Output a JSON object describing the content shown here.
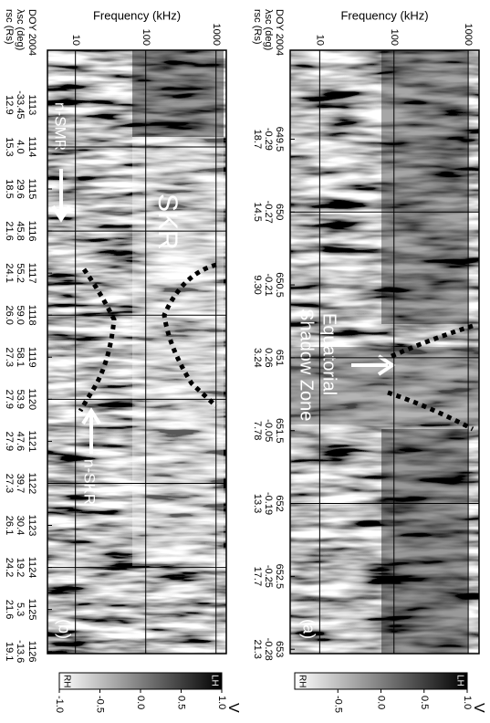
{
  "chart_data": [
    {
      "type": "spectrogram",
      "panel_label": "(a)",
      "ylabel": "Frequency (kHz)",
      "ylog": true,
      "ylim": [
        4,
        1400
      ],
      "yticks": [
        10,
        100,
        1000
      ],
      "xlim": [
        648.89,
        653.03
      ],
      "xticks": [
        649.5,
        650,
        650.5,
        651,
        651.5,
        652,
        652.5,
        653
      ],
      "xgrid": [
        650,
        651,
        652
      ],
      "row_labels": [
        "DOY 2004",
        "λsc (deg)",
        "rsc (Rs)"
      ],
      "lambda_sc": [
        "-0.29",
        "-0.27",
        "-0.21",
        "0.26",
        "-0.05",
        "-0.19",
        "-0.25",
        "-0.28"
      ],
      "r_sc": [
        "18.7",
        "14.5",
        "9.30",
        "3.24",
        "7.78",
        "13.3",
        "17.7",
        "21.3"
      ],
      "annotations": [
        "Equatorial",
        "Shadow Zone"
      ],
      "colorbar": {
        "label": "V",
        "low_label": "RH",
        "high_label": "LH",
        "clim": [
          -1,
          1
        ],
        "ticks": [
          -0.5,
          {
            "value": 0,
            "label": "0.0"
          },
          0.5,
          {
            "value": 1,
            "label": "1.0"
          }
        ]
      }
    },
    {
      "type": "spectrogram",
      "panel_label": "(b)",
      "ylabel": "Frequency (kHz)",
      "ylog": true,
      "ylim": [
        4,
        1400
      ],
      "yticks": [
        10,
        100,
        1000
      ],
      "xlim": [
        1111.7,
        1126.05
      ],
      "xticks": [
        1113,
        1114,
        1115,
        1116,
        1117,
        1118,
        1119,
        1120,
        1121,
        1122,
        1123,
        1124,
        1125,
        1126
      ],
      "xgrid": [
        1114,
        1116,
        1118,
        1120,
        1122,
        1124
      ],
      "row_labels": [
        "DOY 2004",
        "λsc (deg)",
        "rsc (Rs)"
      ],
      "lambda_sc": [
        "-33.45",
        "4.0",
        "29.6",
        "45.8",
        "55.2",
        "59.0",
        "58.1",
        "53.9",
        "47.6",
        "39.7",
        "30.4",
        "19.2",
        "5.3",
        "-13.6"
      ],
      "r_sc": [
        "12.9",
        "15.3",
        "18.5",
        "21.6",
        "24.1",
        "26.0",
        "27.3",
        "27.9",
        "27.9",
        "27.3",
        "26.1",
        "24.2",
        "21.6",
        "19.1"
      ],
      "annotations": [
        "SKR",
        "n-SMR",
        "n-SKR"
      ],
      "colorbar": {
        "label": "V",
        "low_label": "RH",
        "high_label": "LH",
        "clim": [
          -1,
          1
        ],
        "ticks": [
          {
            "value": -1,
            "label": "-1.0"
          },
          -0.5,
          {
            "value": 0,
            "label": "0.0"
          },
          0.5,
          {
            "value": 1,
            "label": "1.0"
          }
        ]
      }
    }
  ]
}
